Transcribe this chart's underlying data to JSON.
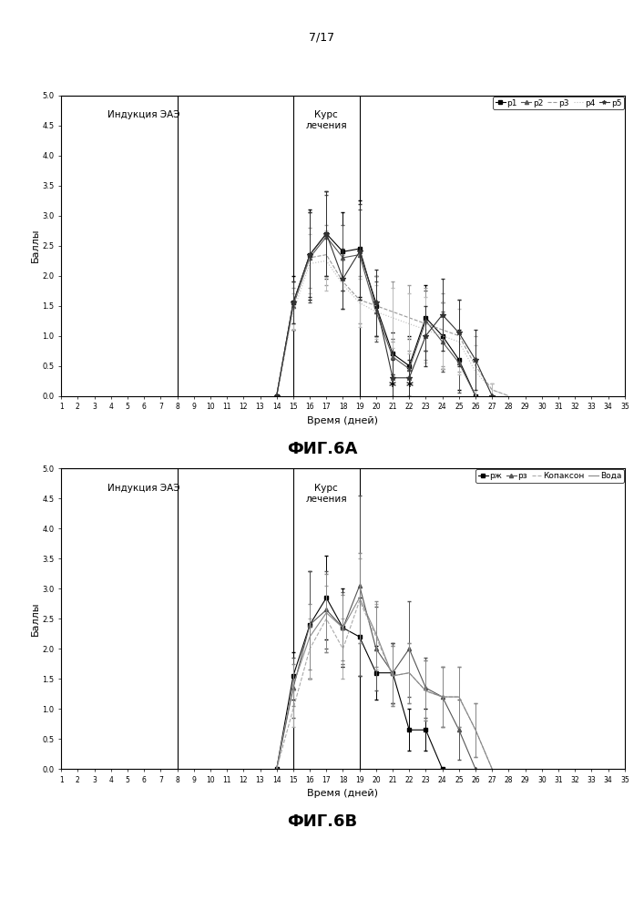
{
  "page_label": "7/17",
  "fig_label_a": "ФИГ.6А",
  "fig_label_b": "ФИГ.6В",
  "xlabel": "Время (дней)",
  "ylabel": "Баллы",
  "label_induction": "Индукция ЭАЭ",
  "label_course": "Курс\nлечения",
  "vline_induction": 8,
  "vline_course_start": 15,
  "vline_course_end": 19,
  "xmin": 1,
  "xmax": 35,
  "ymin": 0.0,
  "ymax": 5.0,
  "days": [
    1,
    2,
    3,
    4,
    5,
    6,
    7,
    8,
    9,
    10,
    11,
    12,
    13,
    14,
    15,
    16,
    17,
    18,
    19,
    20,
    21,
    22,
    23,
    24,
    25,
    26,
    27,
    28,
    29,
    30,
    31,
    32,
    33,
    34,
    35
  ],
  "p1_vals": [
    0,
    0,
    0,
    0,
    0,
    0,
    0,
    0,
    0,
    0,
    0,
    0,
    0,
    0,
    1.55,
    2.35,
    2.7,
    2.4,
    2.45,
    1.5,
    0.7,
    0.5,
    1.3,
    1.0,
    0.6,
    0,
    0,
    0,
    0,
    0,
    0,
    0,
    0,
    0,
    0
  ],
  "p1_err": [
    0,
    0,
    0,
    0,
    0,
    0,
    0,
    0,
    0,
    0,
    0,
    0,
    0,
    0,
    0.45,
    0.75,
    0.7,
    0.65,
    0.8,
    0.5,
    0.35,
    0.5,
    0.55,
    0.55,
    0.5,
    0,
    0,
    0,
    0,
    0,
    0,
    0,
    0,
    0,
    0
  ],
  "p2_vals": [
    0,
    0,
    0,
    0,
    0,
    0,
    0,
    0,
    0,
    0,
    0,
    0,
    0,
    0,
    1.5,
    2.3,
    2.65,
    2.3,
    2.35,
    1.4,
    0.65,
    0.45,
    1.25,
    0.9,
    0.55,
    0,
    0,
    0,
    0,
    0,
    0,
    0,
    0,
    0,
    0
  ],
  "p2_err": [
    0,
    0,
    0,
    0,
    0,
    0,
    0,
    0,
    0,
    0,
    0,
    0,
    0,
    0,
    0.4,
    0.75,
    0.7,
    0.55,
    0.75,
    0.5,
    0.3,
    0.5,
    0.5,
    0.5,
    0.5,
    0,
    0,
    0,
    0,
    0,
    0,
    0,
    0,
    0,
    0
  ],
  "p3_vals": [
    0,
    0,
    0,
    0,
    0,
    0,
    0,
    0,
    0,
    0,
    0,
    0,
    0,
    0,
    1.5,
    2.3,
    2.35,
    1.9,
    1.6,
    1.5,
    1.4,
    1.3,
    1.2,
    1.1,
    1.0,
    0.5,
    0.1,
    0,
    0,
    0,
    0,
    0,
    0,
    0,
    0
  ],
  "p3_err": [
    0,
    0,
    0,
    0,
    0,
    0,
    0,
    0,
    0,
    0,
    0,
    0,
    0,
    0,
    0.3,
    0.5,
    0.5,
    0.45,
    0.4,
    0.5,
    0.5,
    0.55,
    0.6,
    0.6,
    0.6,
    0.5,
    0.1,
    0,
    0,
    0,
    0,
    0,
    0,
    0,
    0
  ],
  "p4_vals": [
    0,
    0,
    0,
    0,
    0,
    0,
    0,
    0,
    0,
    0,
    0,
    0,
    0,
    0,
    1.4,
    2.2,
    2.25,
    1.85,
    1.55,
    1.4,
    1.3,
    1.2,
    1.1,
    1.0,
    0.9,
    0.4,
    0.1,
    0,
    0,
    0,
    0,
    0,
    0,
    0,
    0
  ],
  "p4_err": [
    0,
    0,
    0,
    0,
    0,
    0,
    0,
    0,
    0,
    0,
    0,
    0,
    0,
    0,
    0.3,
    0.5,
    0.5,
    0.4,
    0.4,
    0.45,
    0.5,
    0.5,
    0.55,
    0.55,
    0.55,
    0.45,
    0.1,
    0,
    0,
    0,
    0,
    0,
    0,
    0,
    0
  ],
  "p5_vals": [
    0,
    0,
    0,
    0,
    0,
    0,
    0,
    0,
    0,
    0,
    0,
    0,
    0,
    0,
    1.55,
    2.35,
    2.7,
    1.95,
    2.4,
    1.55,
    0.3,
    0.3,
    1.0,
    1.35,
    1.05,
    0.6,
    0,
    0,
    0,
    0,
    0,
    0,
    0,
    0,
    0
  ],
  "p5_err": [
    0,
    0,
    0,
    0,
    0,
    0,
    0,
    0,
    0,
    0,
    0,
    0,
    0,
    0,
    0.35,
    0.7,
    0.7,
    0.5,
    0.8,
    0.55,
    0.3,
    0.3,
    0.5,
    0.6,
    0.55,
    0.5,
    0,
    0,
    0,
    0,
    0,
    0,
    0,
    0,
    0
  ],
  "asterisk_days_A": [
    21,
    22
  ],
  "asterisk_vals_A": [
    0.3,
    0.3
  ],
  "p6_vals": [
    0,
    0,
    0,
    0,
    0,
    0,
    0,
    0,
    0,
    0,
    0,
    0,
    0,
    0,
    1.55,
    2.4,
    2.85,
    2.35,
    2.2,
    1.6,
    1.6,
    0.65,
    0.65,
    0.0,
    0.0,
    0.0,
    0,
    0,
    0,
    0,
    0,
    0,
    0,
    0,
    0
  ],
  "p6_err": [
    0,
    0,
    0,
    0,
    0,
    0,
    0,
    0,
    0,
    0,
    0,
    0,
    0,
    0,
    0.4,
    0.9,
    0.7,
    0.65,
    0.65,
    0.45,
    0.5,
    0.35,
    0.35,
    0,
    0,
    0,
    0,
    0,
    0,
    0,
    0,
    0,
    0,
    0,
    0
  ],
  "p7_vals": [
    0,
    0,
    0,
    0,
    0,
    0,
    0,
    0,
    0,
    0,
    0,
    0,
    0,
    0,
    1.35,
    2.4,
    2.65,
    2.35,
    3.05,
    2.0,
    1.6,
    2.0,
    1.35,
    1.2,
    0.65,
    0.0,
    0,
    0,
    0,
    0,
    0,
    0,
    0,
    0,
    0
  ],
  "p7_err": [
    0,
    0,
    0,
    0,
    0,
    0,
    0,
    0,
    0,
    0,
    0,
    0,
    0,
    0,
    0.5,
    0.9,
    0.65,
    0.6,
    1.5,
    0.7,
    0.5,
    0.8,
    0.5,
    0.5,
    0.5,
    0,
    0,
    0,
    0,
    0,
    0,
    0,
    0,
    0,
    0
  ],
  "kopaxon_vals": [
    0,
    0,
    0,
    0,
    0,
    0,
    0,
    0,
    0,
    0,
    0,
    0,
    0,
    0,
    1.0,
    2.0,
    2.5,
    2.0,
    2.8,
    2.2,
    1.55,
    1.6,
    1.3,
    1.2,
    1.2,
    0.65,
    0,
    0,
    0,
    0,
    0,
    0,
    0,
    0,
    0
  ],
  "kopaxon_err": [
    0,
    0,
    0,
    0,
    0,
    0,
    0,
    0,
    0,
    0,
    0,
    0,
    0,
    0,
    0.3,
    0.5,
    0.55,
    0.5,
    0.7,
    0.55,
    0.5,
    0.5,
    0.5,
    0.5,
    0.5,
    0.45,
    0,
    0,
    0,
    0,
    0,
    0,
    0,
    0,
    0
  ],
  "voda_vals": [
    0,
    0,
    0,
    0,
    0,
    0,
    0,
    0,
    0,
    0,
    0,
    0,
    0,
    0,
    1.4,
    2.2,
    2.6,
    2.35,
    2.85,
    2.25,
    1.55,
    1.6,
    1.3,
    1.2,
    1.2,
    0.65,
    0,
    0,
    0,
    0,
    0,
    0,
    0,
    0,
    0
  ],
  "voda_err": [
    0,
    0,
    0,
    0,
    0,
    0,
    0,
    0,
    0,
    0,
    0,
    0,
    0,
    0,
    0.35,
    0.55,
    0.65,
    0.55,
    0.75,
    0.55,
    0.5,
    0.5,
    0.5,
    0.5,
    0.5,
    0.45,
    0,
    0,
    0,
    0,
    0,
    0,
    0,
    0,
    0
  ],
  "color_p1": "#000000",
  "color_p2": "#555555",
  "color_p3": "#999999",
  "color_p4": "#bbbbbb",
  "color_p5": "#333333",
  "color_p6": "#000000",
  "color_p7": "#555555",
  "color_kopaxon": "#aaaaaa",
  "color_voda": "#888888",
  "bg_color": "#ffffff",
  "xticks": [
    1,
    2,
    3,
    4,
    5,
    6,
    7,
    8,
    9,
    10,
    11,
    12,
    13,
    14,
    15,
    16,
    17,
    18,
    19,
    20,
    21,
    22,
    23,
    24,
    25,
    26,
    27,
    28,
    29,
    30,
    31,
    32,
    33,
    34,
    35
  ]
}
